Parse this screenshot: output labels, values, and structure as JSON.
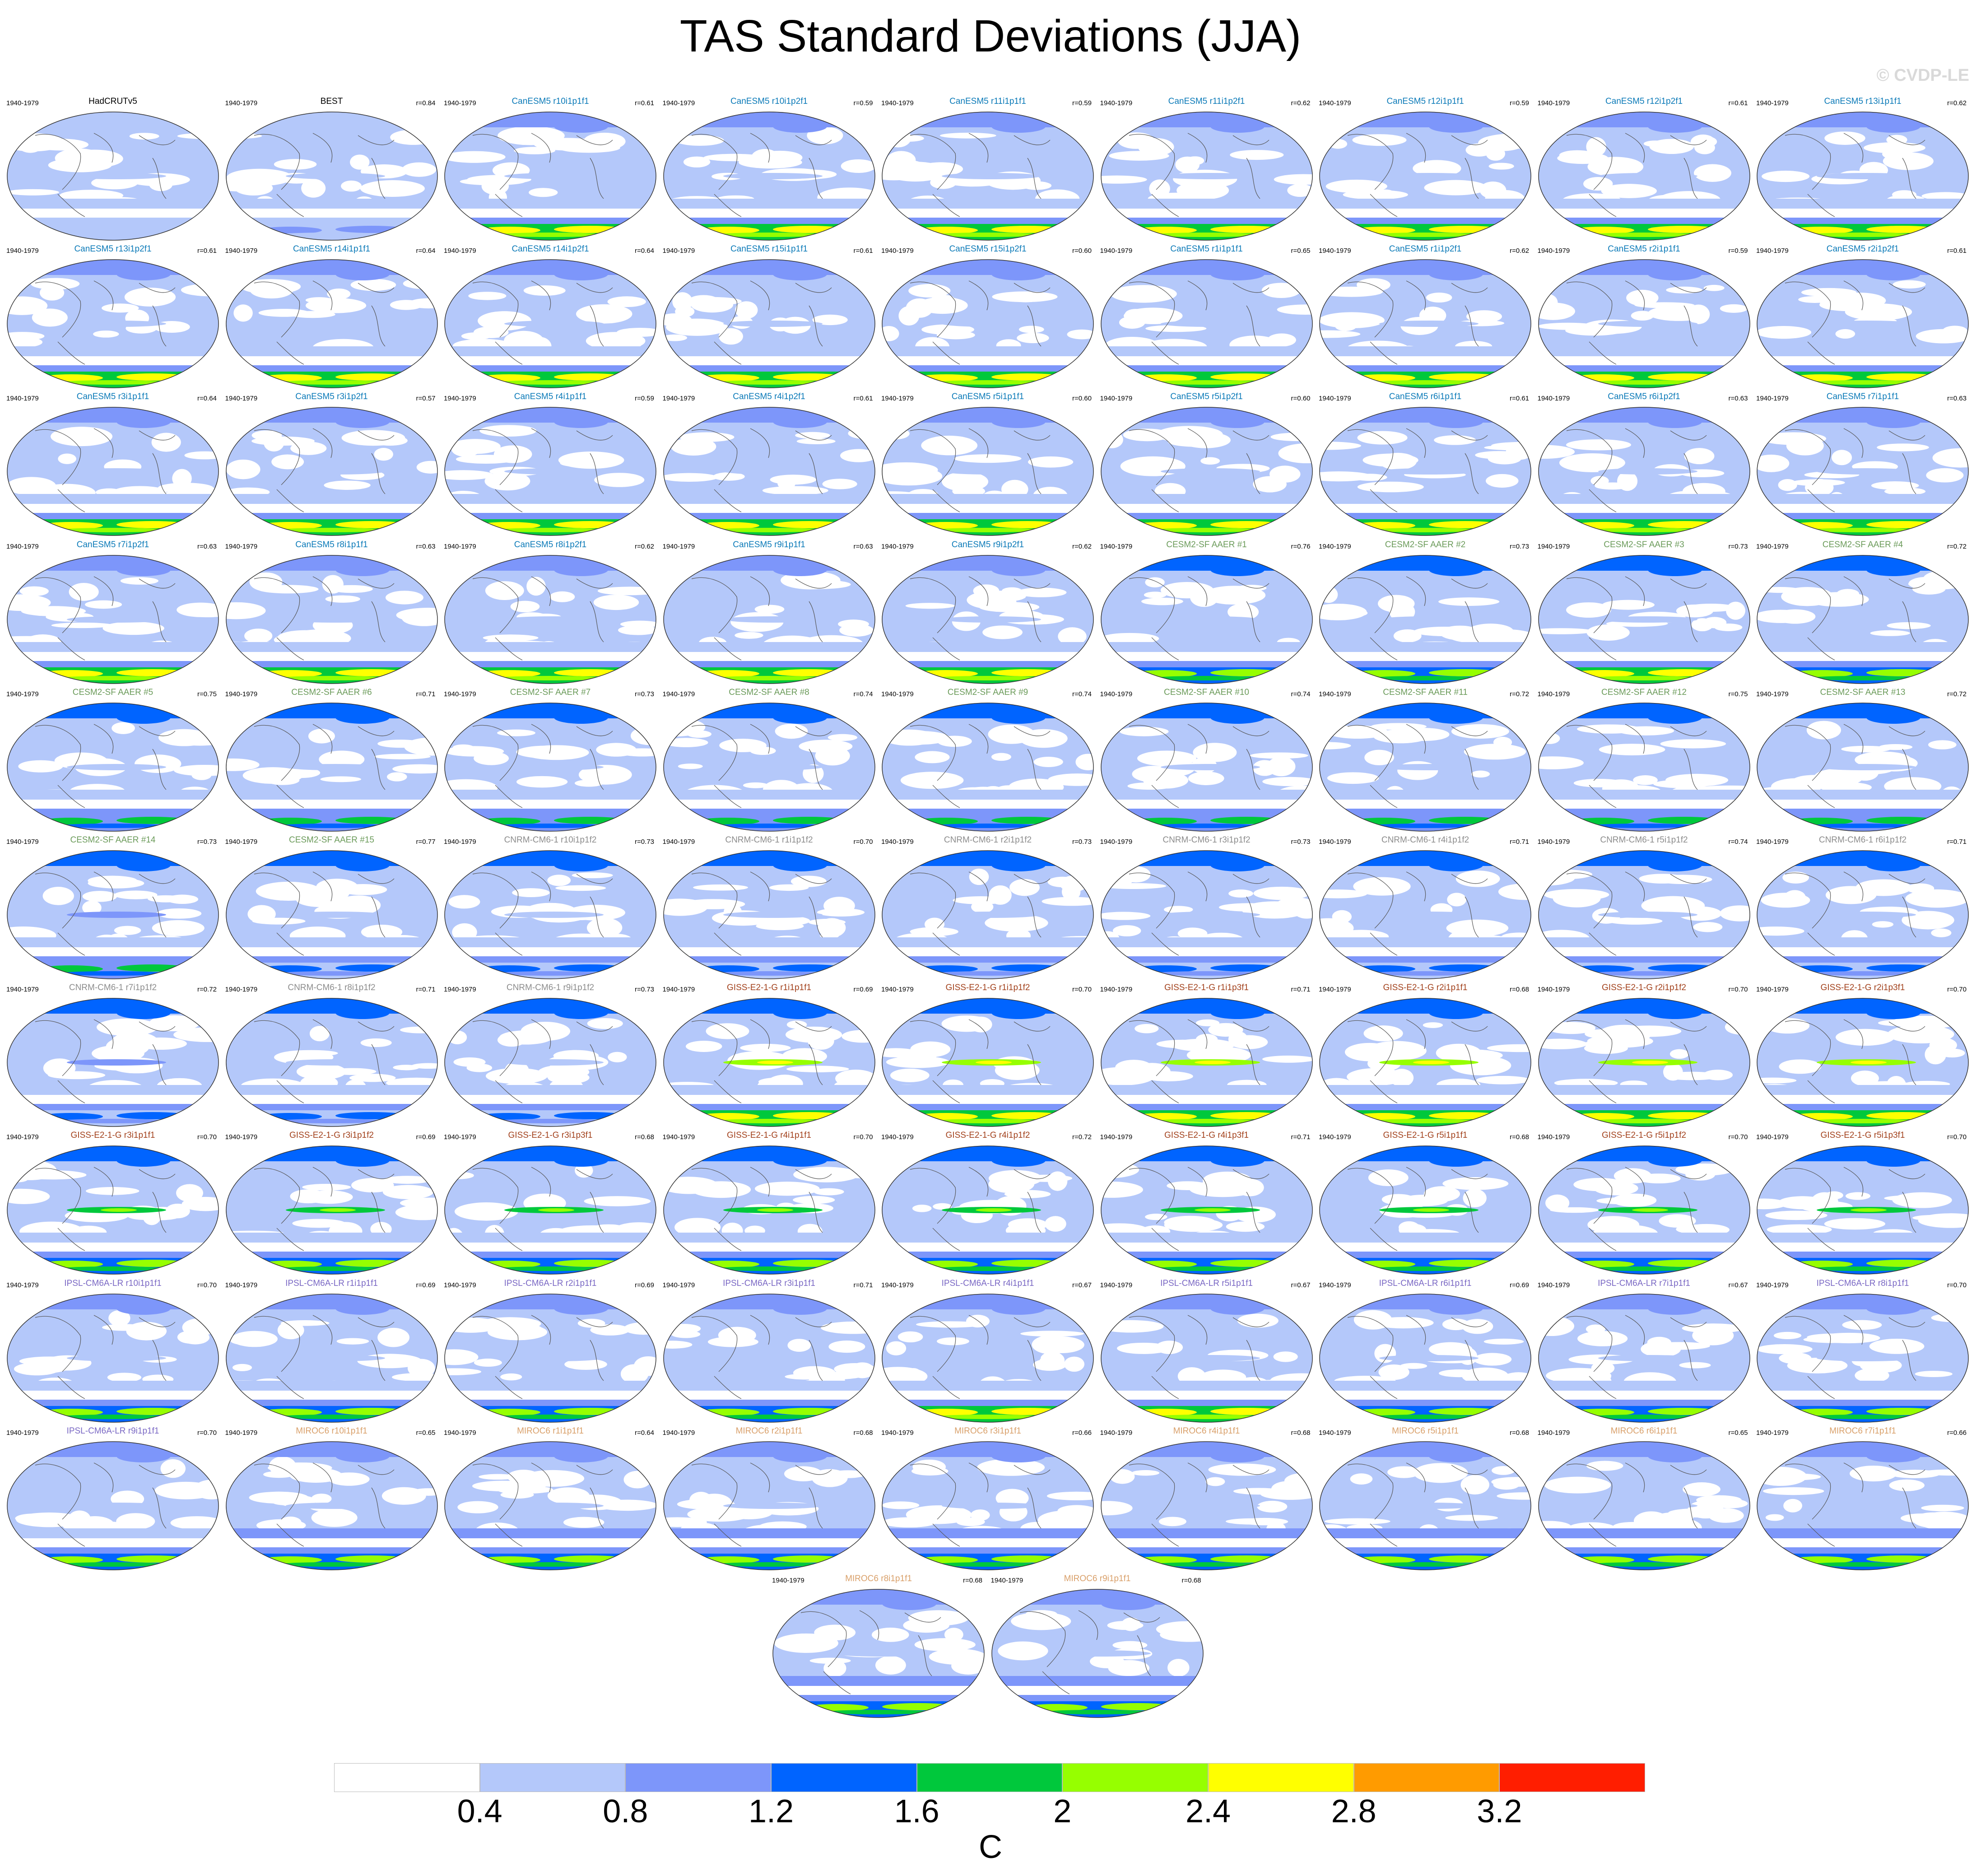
{
  "title": "TAS Standard Deviations (JJA)",
  "watermark": "© CVDP-LE",
  "period": "1940-1979",
  "panels": [
    {
      "label": "HadCRUTv5",
      "r": "",
      "color": "#000000",
      "bands": [
        1,
        1,
        1,
        1,
        1,
        1
      ]
    },
    {
      "label": "BEST",
      "r": "r=0.84",
      "color": "#000000",
      "bands": [
        1,
        1,
        1,
        1,
        1,
        2
      ]
    },
    {
      "label": "CanESM5 r10i1p1f1",
      "r": "r=0.61",
      "color": "#0b7ab8",
      "bands": [
        2,
        1,
        1,
        1,
        2,
        6
      ]
    },
    {
      "label": "CanESM5 r10i1p2f1",
      "r": "r=0.59",
      "color": "#0b7ab8",
      "bands": [
        2,
        1,
        1,
        1,
        2,
        6
      ]
    },
    {
      "label": "CanESM5 r11i1p1f1",
      "r": "r=0.59",
      "color": "#0b7ab8",
      "bands": [
        2,
        1,
        1,
        1,
        2,
        6
      ]
    },
    {
      "label": "CanESM5 r11i1p2f1",
      "r": "r=0.62",
      "color": "#0b7ab8",
      "bands": [
        2,
        1,
        1,
        1,
        2,
        6
      ]
    },
    {
      "label": "CanESM5 r12i1p1f1",
      "r": "r=0.59",
      "color": "#0b7ab8",
      "bands": [
        2,
        1,
        1,
        1,
        2,
        6
      ]
    },
    {
      "label": "CanESM5 r12i1p2f1",
      "r": "r=0.61",
      "color": "#0b7ab8",
      "bands": [
        2,
        1,
        1,
        1,
        2,
        6
      ]
    },
    {
      "label": "CanESM5 r13i1p1f1",
      "r": "r=0.62",
      "color": "#0b7ab8",
      "bands": [
        2,
        1,
        1,
        1,
        2,
        6
      ]
    },
    {
      "label": "CanESM5 r13i1p2f1",
      "r": "r=0.61",
      "color": "#0b7ab8",
      "bands": [
        2,
        1,
        1,
        1,
        2,
        6
      ]
    },
    {
      "label": "CanESM5 r14i1p1f1",
      "r": "r=0.64",
      "color": "#0b7ab8",
      "bands": [
        2,
        1,
        1,
        1,
        2,
        6
      ]
    },
    {
      "label": "CanESM5 r14i1p2f1",
      "r": "r=0.64",
      "color": "#0b7ab8",
      "bands": [
        2,
        1,
        1,
        1,
        2,
        6
      ]
    },
    {
      "label": "CanESM5 r15i1p1f1",
      "r": "r=0.61",
      "color": "#0b7ab8",
      "bands": [
        2,
        1,
        1,
        1,
        2,
        6
      ]
    },
    {
      "label": "CanESM5 r15i1p2f1",
      "r": "r=0.60",
      "color": "#0b7ab8",
      "bands": [
        2,
        1,
        1,
        1,
        2,
        6
      ]
    },
    {
      "label": "CanESM5 r1i1p1f1",
      "r": "r=0.65",
      "color": "#0b7ab8",
      "bands": [
        2,
        1,
        1,
        1,
        2,
        6
      ]
    },
    {
      "label": "CanESM5 r1i1p2f1",
      "r": "r=0.62",
      "color": "#0b7ab8",
      "bands": [
        2,
        1,
        1,
        1,
        2,
        6
      ]
    },
    {
      "label": "CanESM5 r2i1p1f1",
      "r": "r=0.59",
      "color": "#0b7ab8",
      "bands": [
        2,
        1,
        1,
        1,
        2,
        6
      ]
    },
    {
      "label": "CanESM5 r2i1p2f1",
      "r": "r=0.61",
      "color": "#0b7ab8",
      "bands": [
        2,
        1,
        1,
        1,
        2,
        6
      ]
    },
    {
      "label": "CanESM5 r3i1p1f1",
      "r": "r=0.64",
      "color": "#0b7ab8",
      "bands": [
        2,
        1,
        1,
        1,
        2,
        6
      ]
    },
    {
      "label": "CanESM5 r3i1p2f1",
      "r": "r=0.57",
      "color": "#0b7ab8",
      "bands": [
        2,
        1,
        1,
        1,
        2,
        6
      ]
    },
    {
      "label": "CanESM5 r4i1p1f1",
      "r": "r=0.59",
      "color": "#0b7ab8",
      "bands": [
        2,
        1,
        1,
        1,
        2,
        6
      ]
    },
    {
      "label": "CanESM5 r4i1p2f1",
      "r": "r=0.61",
      "color": "#0b7ab8",
      "bands": [
        2,
        1,
        1,
        1,
        2,
        6
      ]
    },
    {
      "label": "CanESM5 r5i1p1f1",
      "r": "r=0.60",
      "color": "#0b7ab8",
      "bands": [
        2,
        1,
        1,
        1,
        2,
        6
      ]
    },
    {
      "label": "CanESM5 r5i1p2f1",
      "r": "r=0.60",
      "color": "#0b7ab8",
      "bands": [
        2,
        1,
        1,
        1,
        2,
        6
      ]
    },
    {
      "label": "CanESM5 r6i1p1f1",
      "r": "r=0.61",
      "color": "#0b7ab8",
      "bands": [
        2,
        1,
        1,
        1,
        2,
        6
      ]
    },
    {
      "label": "CanESM5 r6i1p2f1",
      "r": "r=0.63",
      "color": "#0b7ab8",
      "bands": [
        2,
        1,
        1,
        1,
        2,
        6
      ]
    },
    {
      "label": "CanESM5 r7i1p1f1",
      "r": "r=0.63",
      "color": "#0b7ab8",
      "bands": [
        2,
        1,
        1,
        1,
        2,
        6
      ]
    },
    {
      "label": "CanESM5 r7i1p2f1",
      "r": "r=0.63",
      "color": "#0b7ab8",
      "bands": [
        2,
        1,
        1,
        1,
        2,
        6
      ]
    },
    {
      "label": "CanESM5 r8i1p1f1",
      "r": "r=0.63",
      "color": "#0b7ab8",
      "bands": [
        2,
        1,
        1,
        1,
        2,
        6
      ]
    },
    {
      "label": "CanESM5 r8i1p2f1",
      "r": "r=0.62",
      "color": "#0b7ab8",
      "bands": [
        2,
        1,
        1,
        1,
        2,
        6
      ]
    },
    {
      "label": "CanESM5 r9i1p1f1",
      "r": "r=0.63",
      "color": "#0b7ab8",
      "bands": [
        2,
        1,
        1,
        1,
        2,
        6
      ]
    },
    {
      "label": "CanESM5 r9i1p2f1",
      "r": "r=0.62",
      "color": "#0b7ab8",
      "bands": [
        2,
        1,
        1,
        1,
        2,
        6
      ]
    },
    {
      "label": "CESM2-SF AAER #1",
      "r": "r=0.76",
      "color": "#6b9b5a",
      "bands": [
        3,
        1,
        1,
        1,
        2,
        5
      ]
    },
    {
      "label": "CESM2-SF AAER #2",
      "r": "r=0.73",
      "color": "#6b9b5a",
      "bands": [
        3,
        1,
        1,
        1,
        2,
        5
      ]
    },
    {
      "label": "CESM2-SF AAER #3",
      "r": "r=0.73",
      "color": "#6b9b5a",
      "bands": [
        3,
        1,
        1,
        1,
        2,
        6
      ]
    },
    {
      "label": "CESM2-SF AAER #4",
      "r": "r=0.72",
      "color": "#6b9b5a",
      "bands": [
        3,
        1,
        1,
        1,
        2,
        5
      ]
    },
    {
      "label": "CESM2-SF AAER #5",
      "r": "r=0.75",
      "color": "#6b9b5a",
      "bands": [
        3,
        1,
        1,
        1,
        2,
        4
      ]
    },
    {
      "label": "CESM2-SF AAER #6",
      "r": "r=0.71",
      "color": "#6b9b5a",
      "bands": [
        3,
        1,
        1,
        1,
        2,
        4
      ]
    },
    {
      "label": "CESM2-SF AAER #7",
      "r": "r=0.73",
      "color": "#6b9b5a",
      "bands": [
        3,
        1,
        1,
        1,
        2,
        4
      ]
    },
    {
      "label": "CESM2-SF AAER #8",
      "r": "r=0.74",
      "color": "#6b9b5a",
      "bands": [
        3,
        1,
        1,
        1,
        2,
        4
      ]
    },
    {
      "label": "CESM2-SF AAER #9",
      "r": "r=0.74",
      "color": "#6b9b5a",
      "bands": [
        3,
        1,
        1,
        1,
        2,
        4
      ]
    },
    {
      "label": "CESM2-SF AAER #10",
      "r": "r=0.74",
      "color": "#6b9b5a",
      "bands": [
        3,
        1,
        1,
        1,
        2,
        4
      ]
    },
    {
      "label": "CESM2-SF AAER #11",
      "r": "r=0.72",
      "color": "#6b9b5a",
      "bands": [
        3,
        1,
        1,
        1,
        2,
        4
      ]
    },
    {
      "label": "CESM2-SF AAER #12",
      "r": "r=0.75",
      "color": "#6b9b5a",
      "bands": [
        3,
        1,
        1,
        1,
        2,
        4
      ]
    },
    {
      "label": "CESM2-SF AAER #13",
      "r": "r=0.72",
      "color": "#6b9b5a",
      "bands": [
        3,
        1,
        1,
        1,
        2,
        4
      ]
    },
    {
      "label": "CESM2-SF AAER #14",
      "r": "r=0.73",
      "color": "#6b9b5a",
      "bands": [
        3,
        1,
        2,
        1,
        2,
        4
      ]
    },
    {
      "label": "CESM2-SF AAER #15",
      "r": "r=0.77",
      "color": "#6b9b5a",
      "bands": [
        3,
        1,
        1,
        1,
        2,
        3
      ]
    },
    {
      "label": "CNRM-CM6-1 r10i1p1f2",
      "r": "r=0.73",
      "color": "#8c8c8c",
      "bands": [
        3,
        2,
        1,
        1,
        2,
        3
      ]
    },
    {
      "label": "CNRM-CM6-1 r1i1p1f2",
      "r": "r=0.70",
      "color": "#8c8c8c",
      "bands": [
        3,
        2,
        1,
        1,
        2,
        3
      ]
    },
    {
      "label": "CNRM-CM6-1 r2i1p1f2",
      "r": "r=0.73",
      "color": "#8c8c8c",
      "bands": [
        3,
        2,
        1,
        1,
        2,
        3
      ]
    },
    {
      "label": "CNRM-CM6-1 r3i1p1f2",
      "r": "r=0.73",
      "color": "#8c8c8c",
      "bands": [
        3,
        2,
        1,
        1,
        2,
        3
      ]
    },
    {
      "label": "CNRM-CM6-1 r4i1p1f2",
      "r": "r=0.71",
      "color": "#8c8c8c",
      "bands": [
        3,
        2,
        1,
        1,
        2,
        3
      ]
    },
    {
      "label": "CNRM-CM6-1 r5i1p1f2",
      "r": "r=0.74",
      "color": "#8c8c8c",
      "bands": [
        3,
        2,
        1,
        1,
        2,
        3
      ]
    },
    {
      "label": "CNRM-CM6-1 r6i1p1f2",
      "r": "r=0.71",
      "color": "#8c8c8c",
      "bands": [
        3,
        2,
        1,
        1,
        2,
        3
      ]
    },
    {
      "label": "CNRM-CM6-1 r7i1p1f2",
      "r": "r=0.72",
      "color": "#8c8c8c",
      "bands": [
        3,
        2,
        2,
        1,
        2,
        3
      ]
    },
    {
      "label": "CNRM-CM6-1 r8i1p1f2",
      "r": "r=0.71",
      "color": "#8c8c8c",
      "bands": [
        3,
        2,
        1,
        1,
        2,
        3
      ]
    },
    {
      "label": "CNRM-CM6-1 r9i1p1f2",
      "r": "r=0.73",
      "color": "#8c8c8c",
      "bands": [
        3,
        2,
        1,
        1,
        2,
        3
      ]
    },
    {
      "label": "GISS-E2-1-G r1i1p1f1",
      "r": "r=0.69",
      "color": "#a2411c",
      "bands": [
        3,
        1,
        5,
        1,
        2,
        6
      ]
    },
    {
      "label": "GISS-E2-1-G r1i1p1f2",
      "r": "r=0.70",
      "color": "#a2411c",
      "bands": [
        3,
        1,
        5,
        1,
        2,
        6
      ]
    },
    {
      "label": "GISS-E2-1-G r1i1p3f1",
      "r": "r=0.71",
      "color": "#a2411c",
      "bands": [
        3,
        1,
        5,
        1,
        2,
        6
      ]
    },
    {
      "label": "GISS-E2-1-G r2i1p1f1",
      "r": "r=0.68",
      "color": "#a2411c",
      "bands": [
        3,
        1,
        5,
        1,
        2,
        6
      ]
    },
    {
      "label": "GISS-E2-1-G r2i1p1f2",
      "r": "r=0.70",
      "color": "#a2411c",
      "bands": [
        3,
        1,
        5,
        1,
        2,
        6
      ]
    },
    {
      "label": "GISS-E2-1-G r2i1p3f1",
      "r": "r=0.70",
      "color": "#a2411c",
      "bands": [
        3,
        1,
        5,
        1,
        2,
        6
      ]
    },
    {
      "label": "GISS-E2-1-G r3i1p1f1",
      "r": "r=0.70",
      "color": "#a2411c",
      "bands": [
        3,
        1,
        4,
        1,
        2,
        5
      ]
    },
    {
      "label": "GISS-E2-1-G r3i1p1f2",
      "r": "r=0.69",
      "color": "#a2411c",
      "bands": [
        3,
        1,
        4,
        1,
        2,
        5
      ]
    },
    {
      "label": "GISS-E2-1-G r3i1p3f1",
      "r": "r=0.68",
      "color": "#a2411c",
      "bands": [
        3,
        1,
        4,
        1,
        2,
        5
      ]
    },
    {
      "label": "GISS-E2-1-G r4i1p1f1",
      "r": "r=0.70",
      "color": "#a2411c",
      "bands": [
        3,
        1,
        4,
        1,
        2,
        5
      ]
    },
    {
      "label": "GISS-E2-1-G r4i1p1f2",
      "r": "r=0.72",
      "color": "#a2411c",
      "bands": [
        3,
        1,
        4,
        1,
        2,
        5
      ]
    },
    {
      "label": "GISS-E2-1-G r4i1p3f1",
      "r": "r=0.71",
      "color": "#a2411c",
      "bands": [
        3,
        1,
        4,
        1,
        2,
        5
      ]
    },
    {
      "label": "GISS-E2-1-G r5i1p1f1",
      "r": "r=0.68",
      "color": "#a2411c",
      "bands": [
        3,
        1,
        4,
        1,
        2,
        5
      ]
    },
    {
      "label": "GISS-E2-1-G r5i1p1f2",
      "r": "r=0.70",
      "color": "#a2411c",
      "bands": [
        3,
        1,
        4,
        1,
        2,
        5
      ]
    },
    {
      "label": "GISS-E2-1-G r5i1p3f1",
      "r": "r=0.70",
      "color": "#a2411c",
      "bands": [
        3,
        1,
        4,
        1,
        2,
        5
      ]
    },
    {
      "label": "IPSL-CM6A-LR r10i1p1f1",
      "r": "r=0.70",
      "color": "#7a68c4",
      "bands": [
        2,
        1,
        1,
        1,
        2,
        5
      ]
    },
    {
      "label": "IPSL-CM6A-LR r1i1p1f1",
      "r": "r=0.69",
      "color": "#7a68c4",
      "bands": [
        2,
        1,
        1,
        1,
        2,
        5
      ]
    },
    {
      "label": "IPSL-CM6A-LR r2i1p1f1",
      "r": "r=0.69",
      "color": "#7a68c4",
      "bands": [
        2,
        1,
        1,
        1,
        2,
        5
      ]
    },
    {
      "label": "IPSL-CM6A-LR r3i1p1f1",
      "r": "r=0.71",
      "color": "#7a68c4",
      "bands": [
        2,
        1,
        1,
        1,
        2,
        5
      ]
    },
    {
      "label": "IPSL-CM6A-LR r4i1p1f1",
      "r": "r=0.67",
      "color": "#7a68c4",
      "bands": [
        2,
        1,
        1,
        1,
        2,
        6
      ]
    },
    {
      "label": "IPSL-CM6A-LR r5i1p1f1",
      "r": "r=0.67",
      "color": "#7a68c4",
      "bands": [
        2,
        1,
        1,
        1,
        2,
        6
      ]
    },
    {
      "label": "IPSL-CM6A-LR r6i1p1f1",
      "r": "r=0.69",
      "color": "#7a68c4",
      "bands": [
        2,
        1,
        1,
        1,
        2,
        5
      ]
    },
    {
      "label": "IPSL-CM6A-LR r7i1p1f1",
      "r": "r=0.67",
      "color": "#7a68c4",
      "bands": [
        2,
        1,
        1,
        1,
        2,
        5
      ]
    },
    {
      "label": "IPSL-CM6A-LR r8i1p1f1",
      "r": "r=0.70",
      "color": "#7a68c4",
      "bands": [
        2,
        1,
        1,
        1,
        2,
        5
      ]
    },
    {
      "label": "IPSL-CM6A-LR r9i1p1f1",
      "r": "r=0.70",
      "color": "#7a68c4",
      "bands": [
        2,
        1,
        1,
        1,
        2,
        5
      ]
    },
    {
      "label": "MIROC6 r10i1p1f1",
      "r": "r=0.65",
      "color": "#d9a06a",
      "bands": [
        2,
        1,
        1,
        2,
        2,
        5
      ]
    },
    {
      "label": "MIROC6 r1i1p1f1",
      "r": "r=0.64",
      "color": "#d9a06a",
      "bands": [
        2,
        1,
        1,
        2,
        2,
        5
      ]
    },
    {
      "label": "MIROC6 r2i1p1f1",
      "r": "r=0.68",
      "color": "#d9a06a",
      "bands": [
        2,
        1,
        1,
        2,
        2,
        5
      ]
    },
    {
      "label": "MIROC6 r3i1p1f1",
      "r": "r=0.66",
      "color": "#d9a06a",
      "bands": [
        2,
        1,
        1,
        2,
        2,
        5
      ]
    },
    {
      "label": "MIROC6 r4i1p1f1",
      "r": "r=0.68",
      "color": "#d9a06a",
      "bands": [
        2,
        1,
        1,
        2,
        2,
        5
      ]
    },
    {
      "label": "MIROC6 r5i1p1f1",
      "r": "r=0.68",
      "color": "#d9a06a",
      "bands": [
        2,
        1,
        1,
        2,
        2,
        5
      ]
    },
    {
      "label": "MIROC6 r6i1p1f1",
      "r": "r=0.65",
      "color": "#d9a06a",
      "bands": [
        2,
        1,
        1,
        2,
        2,
        5
      ]
    },
    {
      "label": "MIROC6 r7i1p1f1",
      "r": "r=0.66",
      "color": "#d9a06a",
      "bands": [
        2,
        1,
        1,
        2,
        2,
        5
      ]
    },
    {
      "label": "MIROC6 r8i1p1f1",
      "r": "r=0.68",
      "color": "#d9a06a",
      "bands": [
        2,
        1,
        1,
        2,
        2,
        5
      ]
    },
    {
      "label": "MIROC6 r9i1p1f1",
      "r": "r=0.68",
      "color": "#d9a06a",
      "bands": [
        2,
        1,
        1,
        2,
        2,
        5
      ]
    }
  ],
  "colorbar": {
    "unit": "C",
    "labels": [
      "0.4",
      "0.8",
      "1.2",
      "1.6",
      "2",
      "2.4",
      "2.8",
      "3.2"
    ],
    "colors": [
      "#ffffff",
      "#b4c8fa",
      "#7d96fa",
      "#0064ff",
      "#00c83c",
      "#96ff00",
      "#ffff00",
      "#ff9b00",
      "#ff1e00"
    ]
  }
}
